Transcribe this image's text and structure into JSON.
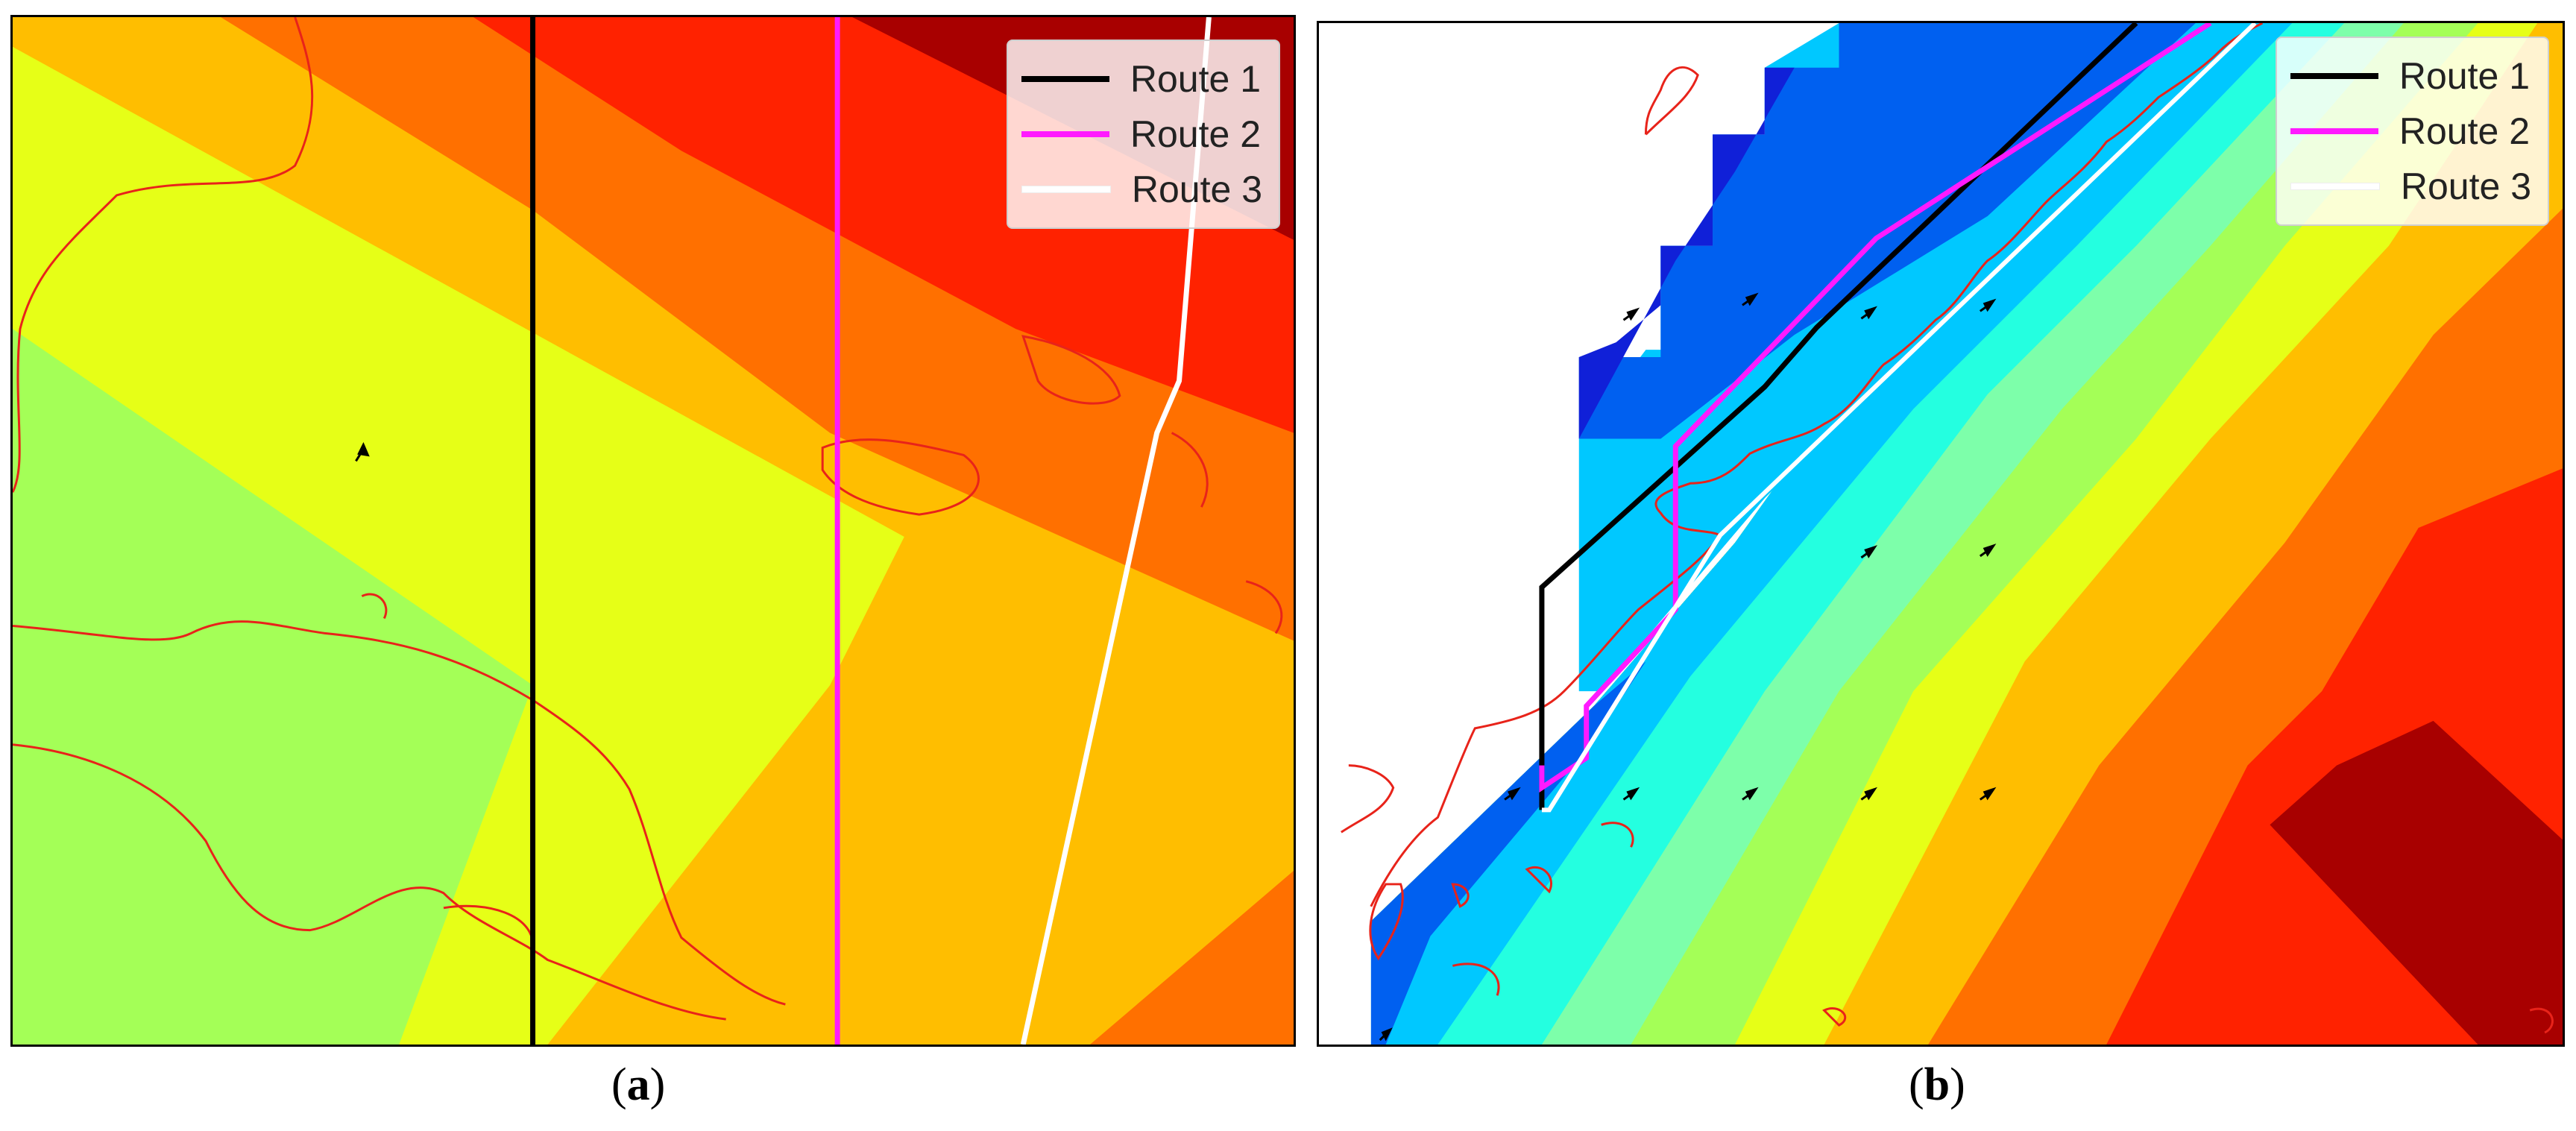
{
  "panels": [
    {
      "id": "a",
      "caption_letter": "a",
      "legend": [
        {
          "label": "Route 1",
          "color": "#000000"
        },
        {
          "label": "Route 2",
          "color": "#ff1aff"
        },
        {
          "label": "Route 3",
          "color": "#ffffff"
        }
      ]
    },
    {
      "id": "b",
      "caption_letter": "b",
      "legend": [
        {
          "label": "Route 1",
          "color": "#000000"
        },
        {
          "label": "Route 2",
          "color": "#ff1aff"
        },
        {
          "label": "Route 3",
          "color": "#ffffff"
        }
      ]
    }
  ],
  "colors": {
    "coastline": "#e8231a",
    "dark_red": "#a80000",
    "red": "#ff2200",
    "orange": "#ff7000",
    "amber": "#ffbe00",
    "yellow": "#e6ff17",
    "light_green": "#a4ff57",
    "aqua": "#7dffaa",
    "cyan": "#24ffe0",
    "sky": "#00c8ff",
    "blue": "#0060f0",
    "navy": "#1020d8"
  }
}
